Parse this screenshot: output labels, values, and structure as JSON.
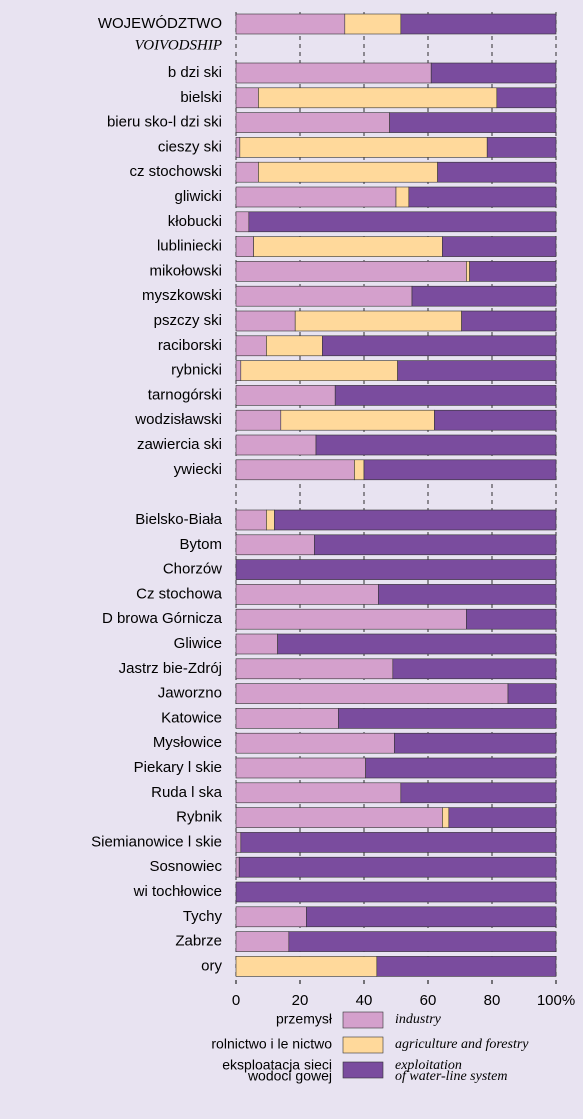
{
  "chart_data": {
    "type": "stacked_bar_horizontal",
    "categories": [
      "WOJEWÓDZTWO",
      "b dzi ski",
      "bielski",
      "bieru sko-l dzi ski",
      "cieszy ski",
      "cz stochowski",
      "gliwicki",
      "kłobucki",
      "lubliniecki",
      "mikołowski",
      "myszkowski",
      "pszczy ski",
      "raciborski",
      "rybnicki",
      "tarnogórski",
      "wodzisławski",
      "zawiercia ski",
      "ywiecki",
      "Bielsko-Biała",
      "Bytom",
      "Chorzów",
      "Cz stochowa",
      "D browa Górnicza",
      "Gliwice",
      "Jastrz bie-Zdrój",
      "Jaworzno",
      "Katowice",
      "Mysłowice",
      "Piekary  l skie",
      "Ruda  l ska",
      "Rybnik",
      "Siemianowice  l skie",
      "Sosnowiec",
      "wi tochłowice",
      "Tychy",
      "Zabrze",
      "ory"
    ],
    "category_subtitle": "VOIVODSHIP",
    "series": [
      {
        "name": "przemysł",
        "name_en": "industry",
        "color": "#d4a0cc",
        "values": [
          34,
          61,
          7,
          48,
          1.2,
          7,
          50,
          4,
          5.5,
          72,
          55,
          18.5,
          9.5,
          1.5,
          31,
          14,
          25,
          37,
          9.5,
          24.5,
          0,
          44.5,
          72,
          13,
          49,
          85,
          32,
          49.5,
          40.5,
          51.5,
          64.5,
          1.5,
          1,
          0,
          22,
          16.5,
          0
        ]
      },
      {
        "name": "rolnictwo i le nictwo",
        "name_en": "agriculture and forestry",
        "color": "#ffd99b",
        "values": [
          17.5,
          0,
          74.5,
          0,
          77.3,
          56,
          4,
          0,
          59,
          1,
          0,
          52,
          17.5,
          49,
          0,
          48,
          0,
          3,
          2.5,
          0,
          0,
          0,
          0,
          0,
          0,
          0,
          0,
          0,
          0,
          0,
          2,
          0,
          0,
          0,
          0,
          0,
          44
        ]
      },
      {
        "name_lines": [
          "eksploatacja sieci",
          "wodoci gowej"
        ],
        "name_en_lines": [
          "exploitation",
          "of water-line system"
        ],
        "color": "#7a4c9e",
        "values": [
          48.5,
          39,
          18.5,
          52,
          21.5,
          37,
          46,
          96,
          35.5,
          27,
          45,
          29.5,
          73,
          49.5,
          69,
          38,
          75,
          60,
          88,
          75.5,
          100,
          55.5,
          28,
          87,
          51,
          15,
          68,
          50.5,
          59.5,
          48.5,
          33.5,
          98.5,
          99,
          100,
          78,
          83.5,
          56
        ]
      }
    ],
    "xlim": [
      0,
      100
    ],
    "xticks": [
      0,
      20,
      40,
      60,
      80,
      {
        "value": 100,
        "label": "100%"
      }
    ],
    "grid": true
  }
}
